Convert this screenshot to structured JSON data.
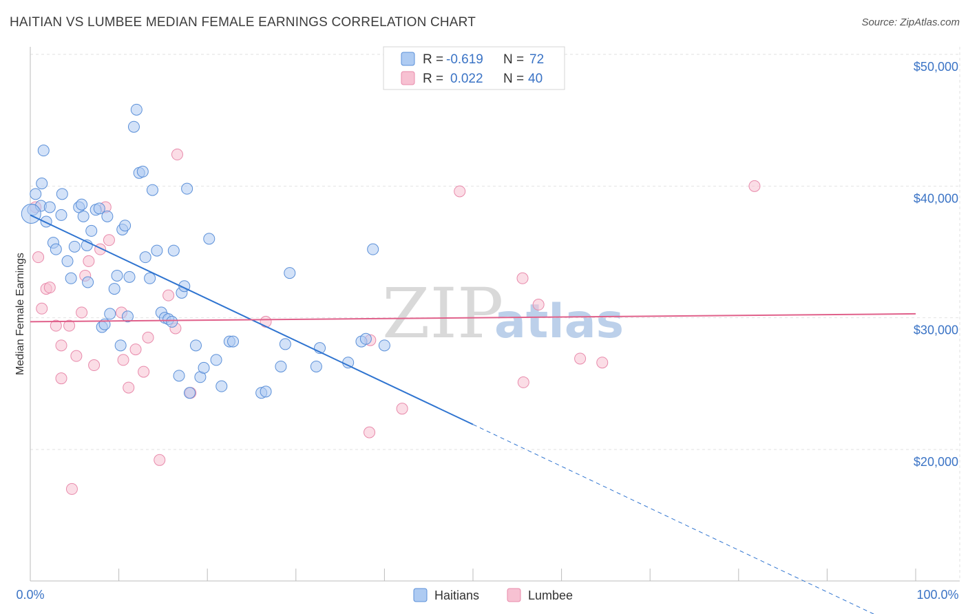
{
  "title": "HAITIAN VS LUMBEE MEDIAN FEMALE EARNINGS CORRELATION CHART",
  "source": "Source: ZipAtlas.com",
  "watermark": {
    "zip": "ZIP",
    "atlas": "atlas"
  },
  "colors": {
    "haitians_fill": "#aecbf2",
    "haitians_stroke": "#5a8fd8",
    "haitians_line": "#2f74d0",
    "lumbee_fill": "#f7c1d2",
    "lumbee_stroke": "#e88aab",
    "lumbee_line": "#e0608a",
    "tick_text": "#3a73c5",
    "grid": "#e2e2e2"
  },
  "legend": {
    "rows": [
      {
        "r_label": "R =",
        "r_value": "-0.619",
        "n_label": "N =",
        "n_value": "72"
      },
      {
        "r_label": "R =",
        "r_value": "0.022",
        "n_label": "N =",
        "n_value": "40"
      }
    ]
  },
  "bottom_legend": [
    "Haitians",
    "Lumbee"
  ],
  "chart_data": {
    "type": "scatter",
    "xlabel": "",
    "ylabel": "Median Female Earnings",
    "xlim": [
      0,
      100
    ],
    "ylim": [
      10000,
      52000
    ],
    "x_tick_labels": [
      "0.0%",
      "100.0%"
    ],
    "y_ticks": [
      20000,
      30000,
      40000,
      50000
    ],
    "y_tick_labels": [
      "$20,000",
      "$30,000",
      "$40,000",
      "$50,000"
    ],
    "grid": true,
    "series": [
      {
        "name": "Haitians",
        "R": -0.619,
        "N": 72,
        "trend": {
          "x0": 0,
          "y0": 37800,
          "x1": 50,
          "y1": 21900,
          "dashed_to_x": 100,
          "dashed_to_y": 6000
        },
        "points": [
          [
            0.3,
            38200
          ],
          [
            0.6,
            39400
          ],
          [
            1.2,
            38500
          ],
          [
            1.5,
            42700
          ],
          [
            1.3,
            40200
          ],
          [
            1.8,
            37300
          ],
          [
            2.2,
            38400
          ],
          [
            2.6,
            35700
          ],
          [
            2.9,
            35200
          ],
          [
            3.5,
            37800
          ],
          [
            3.6,
            39400
          ],
          [
            4.2,
            34300
          ],
          [
            4.6,
            33000
          ],
          [
            5.0,
            35400
          ],
          [
            5.5,
            38400
          ],
          [
            5.8,
            38600
          ],
          [
            6.0,
            37700
          ],
          [
            6.4,
            35500
          ],
          [
            6.5,
            32700
          ],
          [
            6.9,
            36600
          ],
          [
            7.4,
            38200
          ],
          [
            7.8,
            38300
          ],
          [
            8.1,
            29300
          ],
          [
            8.4,
            29500
          ],
          [
            8.7,
            37700
          ],
          [
            9.0,
            30300
          ],
          [
            9.5,
            32200
          ],
          [
            9.8,
            33200
          ],
          [
            10.2,
            27900
          ],
          [
            10.4,
            36700
          ],
          [
            10.7,
            37000
          ],
          [
            11.0,
            30100
          ],
          [
            11.2,
            33100
          ],
          [
            11.7,
            44500
          ],
          [
            12.0,
            45800
          ],
          [
            12.3,
            41000
          ],
          [
            12.7,
            41100
          ],
          [
            13.0,
            34600
          ],
          [
            13.5,
            33000
          ],
          [
            13.8,
            39700
          ],
          [
            14.3,
            35100
          ],
          [
            14.8,
            30400
          ],
          [
            15.2,
            30000
          ],
          [
            15.6,
            29900
          ],
          [
            16.0,
            29700
          ],
          [
            16.2,
            35100
          ],
          [
            16.8,
            25600
          ],
          [
            17.1,
            31900
          ],
          [
            17.4,
            32400
          ],
          [
            17.7,
            39800
          ],
          [
            18.0,
            24300
          ],
          [
            18.7,
            27900
          ],
          [
            19.2,
            25500
          ],
          [
            19.6,
            26200
          ],
          [
            20.2,
            36000
          ],
          [
            21.0,
            26800
          ],
          [
            21.6,
            24800
          ],
          [
            22.5,
            28200
          ],
          [
            22.9,
            28200
          ],
          [
            26.1,
            24300
          ],
          [
            26.6,
            24400
          ],
          [
            28.3,
            26300
          ],
          [
            28.8,
            28000
          ],
          [
            29.3,
            33400
          ],
          [
            32.3,
            26300
          ],
          [
            32.7,
            27700
          ],
          [
            35.9,
            26600
          ],
          [
            37.4,
            28200
          ],
          [
            37.9,
            28400
          ],
          [
            38.7,
            35200
          ],
          [
            40.0,
            27900
          ],
          [
            0.1,
            37900
          ]
        ]
      },
      {
        "name": "Lumbee",
        "R": 0.022,
        "N": 40,
        "trend": {
          "x0": 0,
          "y0": 29700,
          "x1": 100,
          "y1": 30300
        },
        "points": [
          [
            0.6,
            38400
          ],
          [
            0.9,
            34600
          ],
          [
            1.3,
            30700
          ],
          [
            1.8,
            32200
          ],
          [
            2.2,
            32300
          ],
          [
            2.9,
            29400
          ],
          [
            3.5,
            27900
          ],
          [
            3.5,
            25400
          ],
          [
            4.4,
            29400
          ],
          [
            4.7,
            17000
          ],
          [
            5.2,
            27100
          ],
          [
            5.8,
            30400
          ],
          [
            6.2,
            33200
          ],
          [
            6.6,
            34300
          ],
          [
            7.2,
            26400
          ],
          [
            7.9,
            35200
          ],
          [
            8.5,
            38400
          ],
          [
            8.9,
            35900
          ],
          [
            10.3,
            30400
          ],
          [
            10.5,
            26800
          ],
          [
            11.1,
            24700
          ],
          [
            11.9,
            27600
          ],
          [
            12.8,
            25900
          ],
          [
            13.3,
            28500
          ],
          [
            14.6,
            19200
          ],
          [
            15.6,
            31700
          ],
          [
            16.4,
            29200
          ],
          [
            16.6,
            42400
          ],
          [
            18.1,
            24300
          ],
          [
            26.6,
            29700
          ],
          [
            38.4,
            28300
          ],
          [
            38.3,
            21300
          ],
          [
            42.0,
            23100
          ],
          [
            48.5,
            39600
          ],
          [
            55.6,
            33000
          ],
          [
            55.7,
            25100
          ],
          [
            57.4,
            31000
          ],
          [
            62.1,
            26900
          ],
          [
            64.6,
            26600
          ],
          [
            81.8,
            40000
          ]
        ]
      }
    ]
  }
}
